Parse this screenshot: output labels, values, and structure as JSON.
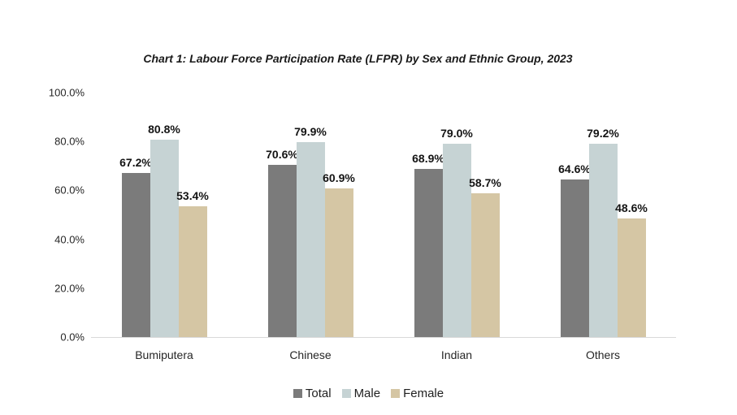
{
  "chart_data": {
    "type": "bar",
    "title": "Chart 1: Labour Force Participation Rate (LFPR) by Sex and Ethnic Group, 2023",
    "categories": [
      "Bumiputera",
      "Chinese",
      "Indian",
      "Others"
    ],
    "series": [
      {
        "name": "Total",
        "color": "#7b7b7b",
        "values": [
          67.2,
          70.6,
          68.9,
          64.6
        ]
      },
      {
        "name": "Male",
        "color": "#c6d3d4",
        "values": [
          80.8,
          79.9,
          79.0,
          79.2
        ]
      },
      {
        "name": "Female",
        "color": "#d5c6a4",
        "values": [
          53.4,
          60.9,
          58.7,
          48.6
        ]
      }
    ],
    "y_ticks": [
      "100.0%",
      "80.0%",
      "60.0%",
      "40.0%",
      "20.0%",
      "0.0%"
    ],
    "ylim": [
      0,
      100
    ],
    "value_label_decimals": 1,
    "value_label_suffix": "%",
    "grid": false,
    "legend_position": "bottom",
    "xlabel": "",
    "ylabel": "",
    "axis_line_color": "#d9d9d9"
  }
}
